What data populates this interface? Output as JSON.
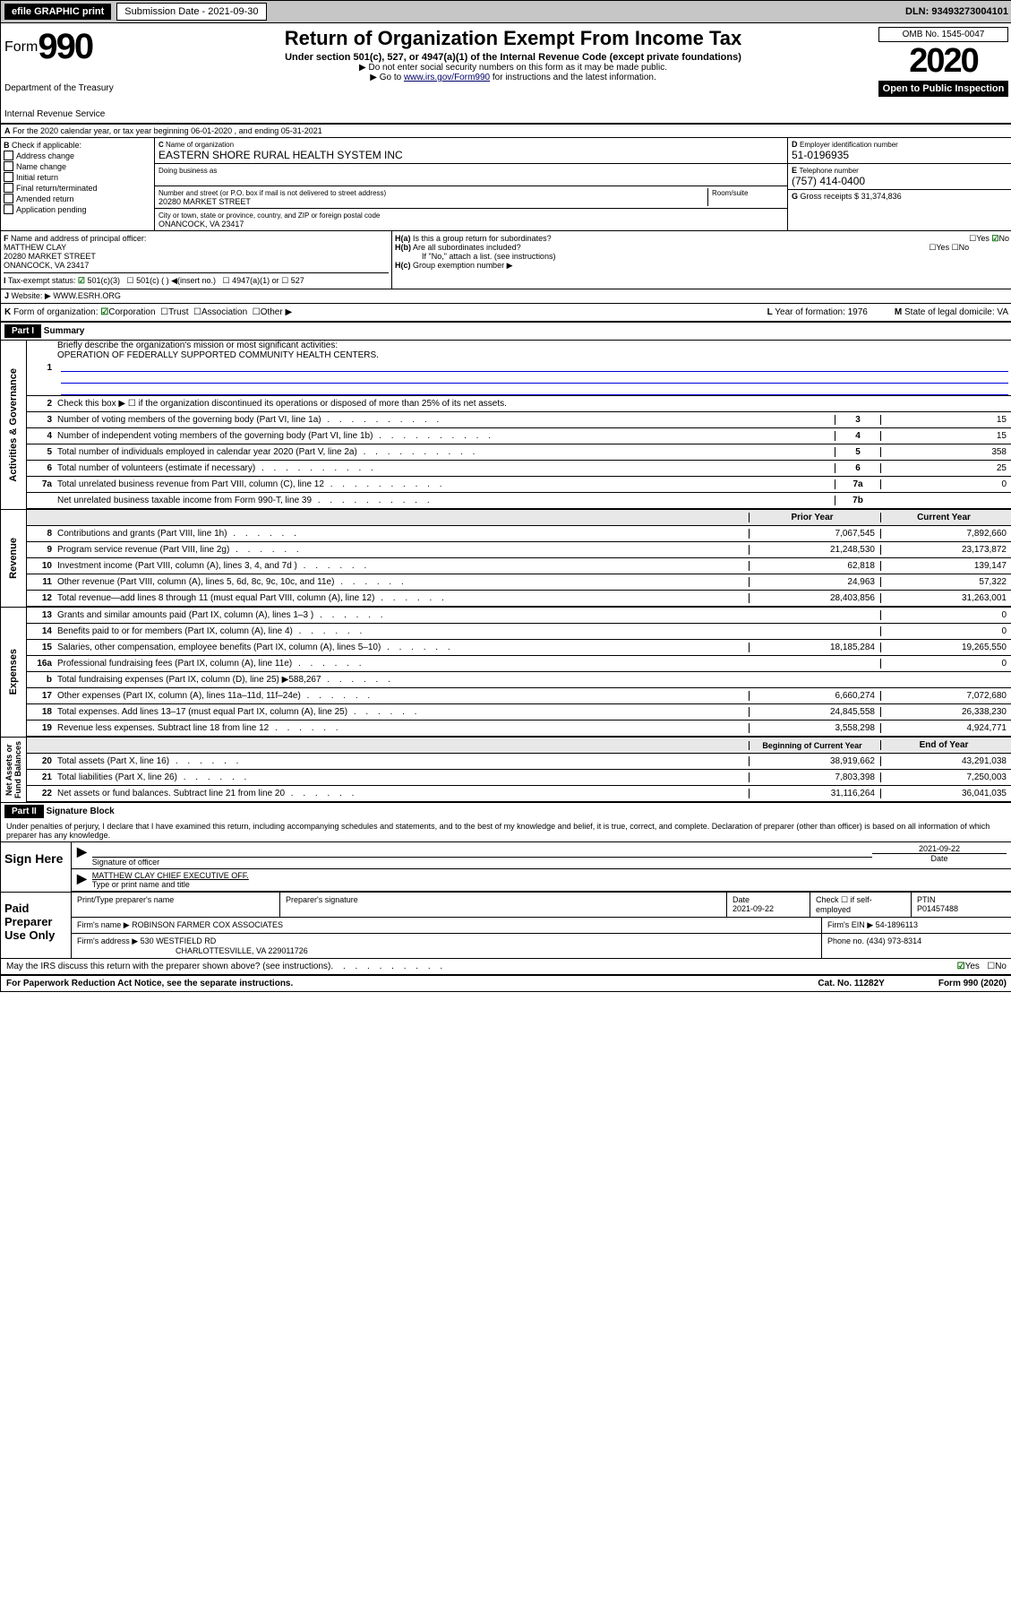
{
  "topbar": {
    "efile": "efile GRAPHIC print",
    "sub_label": "Submission Date - 2021-09-30",
    "dln": "DLN: 93493273004101"
  },
  "hdr": {
    "title": "Return of Organization Exempt From Income Tax",
    "line1": "Under section 501(c), 527, or 4947(a)(1) of the Internal Revenue Code (except private foundations)",
    "line2": "▶ Do not enter social security numbers on this form as it may be made public.",
    "line3_pre": "▶ Go to ",
    "line3_link": "www.irs.gov/Form990",
    "line3_post": " for instructions and the latest information.",
    "form": "990",
    "form_word": "Form",
    "omb": "OMB No. 1545-0047",
    "year": "2020",
    "open": "Open to Public Inspection",
    "agency1": "Department of the Treasury",
    "agency2": "Internal Revenue Service"
  },
  "a": {
    "line": "For the 2020 calendar year, or tax year beginning 06-01-2020    , and ending 05-31-2021"
  },
  "b": {
    "label": "Check if applicable:",
    "opts": [
      "Address change",
      "Name change",
      "Initial return",
      "Final return/terminated",
      "Amended return",
      "Application pending"
    ]
  },
  "c": {
    "name_label": "Name of organization",
    "name": "EASTERN SHORE RURAL HEALTH SYSTEM INC",
    "dba_label": "Doing business as",
    "addr_label": "Number and street (or P.O. box if mail is not delivered to street address)",
    "room_label": "Room/suite",
    "addr": "20280 MARKET STREET",
    "city_label": "City or town, state or province, country, and ZIP or foreign postal code",
    "city": "ONANCOCK, VA  23417"
  },
  "d": {
    "label": "Employer identification number",
    "val": "51-0196935"
  },
  "e": {
    "label": "Telephone number",
    "val": "(757) 414-0400"
  },
  "g": {
    "label": "Gross receipts $",
    "val": "31,374,836"
  },
  "f": {
    "label": "Name and address of principal officer:",
    "name": "MATTHEW CLAY",
    "addr": "20280 MARKET STREET",
    "city": "ONANCOCK, VA  23417"
  },
  "h": {
    "a": "Is this a group return for subordinates?",
    "b": "Are all subordinates included?",
    "b2": "If \"No,\" attach a list. (see instructions)",
    "c": "Group exemption number ▶"
  },
  "i": {
    "label": "Tax-exempt status:",
    "o1": "501(c)(3)",
    "o2": "501(c) (  ) ◀(insert no.)",
    "o3": "4947(a)(1) or",
    "o4": "527"
  },
  "j": {
    "label": "Website: ▶",
    "val": "WWW.ESRH.ORG"
  },
  "k": {
    "label": "Form of organization:",
    "o": [
      "Corporation",
      "Trust",
      "Association",
      "Other ▶"
    ],
    "l": "Year of formation: 1976",
    "m": "State of legal domicile: VA"
  },
  "p1": {
    "title": "Part I",
    "sub": "Summary",
    "q1": "Briefly describe the organization's mission or most significant activities:",
    "q1v": "OPERATION OF FEDERALLY SUPPORTED COMMUNITY HEALTH CENTERS.",
    "q2": "Check this box ▶ ☐  if the organization discontinued its operations or disposed of more than 25% of its net assets.",
    "rows_gov": [
      {
        "n": "3",
        "d": "Number of voting members of the governing body (Part VI, line 1a)",
        "c": "3",
        "v": "15"
      },
      {
        "n": "4",
        "d": "Number of independent voting members of the governing body (Part VI, line 1b)",
        "c": "4",
        "v": "15"
      },
      {
        "n": "5",
        "d": "Total number of individuals employed in calendar year 2020 (Part V, line 2a)",
        "c": "5",
        "v": "358"
      },
      {
        "n": "6",
        "d": "Total number of volunteers (estimate if necessary)",
        "c": "6",
        "v": "25"
      },
      {
        "n": "7a",
        "d": "Total unrelated business revenue from Part VIII, column (C), line 12",
        "c": "7a",
        "v": "0"
      },
      {
        "n": "",
        "d": "Net unrelated business taxable income from Form 990-T, line 39",
        "c": "7b",
        "v": ""
      }
    ],
    "hdr_rev": {
      "py": "Prior Year",
      "cy": "Current Year"
    },
    "rows_rev": [
      {
        "n": "8",
        "d": "Contributions and grants (Part VIII, line 1h)",
        "py": "7,067,545",
        "cy": "7,892,660"
      },
      {
        "n": "9",
        "d": "Program service revenue (Part VIII, line 2g)",
        "py": "21,248,530",
        "cy": "23,173,872"
      },
      {
        "n": "10",
        "d": "Investment income (Part VIII, column (A), lines 3, 4, and 7d )",
        "py": "62,818",
        "cy": "139,147"
      },
      {
        "n": "11",
        "d": "Other revenue (Part VIII, column (A), lines 5, 6d, 8c, 9c, 10c, and 11e)",
        "py": "24,963",
        "cy": "57,322"
      },
      {
        "n": "12",
        "d": "Total revenue—add lines 8 through 11 (must equal Part VIII, column (A), line 12)",
        "py": "28,403,856",
        "cy": "31,263,001"
      }
    ],
    "rows_exp": [
      {
        "n": "13",
        "d": "Grants and similar amounts paid (Part IX, column (A), lines 1–3 )",
        "py": "",
        "cy": "0"
      },
      {
        "n": "14",
        "d": "Benefits paid to or for members (Part IX, column (A), line 4)",
        "py": "",
        "cy": "0"
      },
      {
        "n": "15",
        "d": "Salaries, other compensation, employee benefits (Part IX, column (A), lines 5–10)",
        "py": "18,185,284",
        "cy": "19,265,550"
      },
      {
        "n": "16a",
        "d": "Professional fundraising fees (Part IX, column (A), line 11e)",
        "py": "",
        "cy": "0"
      },
      {
        "n": "b",
        "d": "Total fundraising expenses (Part IX, column (D), line 25) ▶588,267",
        "py": "gray",
        "cy": "gray"
      },
      {
        "n": "17",
        "d": "Other expenses (Part IX, column (A), lines 11a–11d, 11f–24e)",
        "py": "6,660,274",
        "cy": "7,072,680"
      },
      {
        "n": "18",
        "d": "Total expenses. Add lines 13–17 (must equal Part IX, column (A), line 25)",
        "py": "24,845,558",
        "cy": "26,338,230"
      },
      {
        "n": "19",
        "d": "Revenue less expenses. Subtract line 18 from line 12",
        "py": "3,558,298",
        "cy": "4,924,771"
      }
    ],
    "hdr_net": {
      "py": "Beginning of Current Year",
      "cy": "End of Year"
    },
    "rows_net": [
      {
        "n": "20",
        "d": "Total assets (Part X, line 16)",
        "py": "38,919,662",
        "cy": "43,291,038"
      },
      {
        "n": "21",
        "d": "Total liabilities (Part X, line 26)",
        "py": "7,803,398",
        "cy": "7,250,003"
      },
      {
        "n": "22",
        "d": "Net assets or fund balances. Subtract line 21 from line 20",
        "py": "31,116,264",
        "cy": "36,041,035"
      }
    ],
    "side": {
      "gov": "Activities & Governance",
      "rev": "Revenue",
      "exp": "Expenses",
      "net": "Net Assets or Fund Balances"
    }
  },
  "p2": {
    "title": "Part II",
    "sub": "Signature Block",
    "decl": "Under penalties of perjury, I declare that I have examined this return, including accompanying schedules and statements, and to the best of my knowledge and belief, it is true, correct, and complete. Declaration of preparer (other than officer) is based on all information of which preparer has any knowledge.",
    "sign_here": "Sign Here",
    "sig_officer": "Signature of officer",
    "date": "2021-09-22",
    "date_label": "Date",
    "name": "MATTHEW CLAY  CHIEF EXECUTIVE OFF.",
    "name_label": "Type or print name and title",
    "paid": "Paid Preparer Use Only",
    "prep_hdr": [
      "Print/Type preparer's name",
      "Preparer's signature",
      "Date",
      "Check ☐ if self-employed",
      "PTIN"
    ],
    "prep_r1": [
      "",
      "",
      "2021-09-22",
      "",
      "P01457488"
    ],
    "firm_name_l": "Firm's name    ▶",
    "firm_name": "ROBINSON FARMER COX ASSOCIATES",
    "firm_ein_l": "Firm's EIN ▶",
    "firm_ein": "54-1896113",
    "firm_addr_l": "Firm's address ▶",
    "firm_addr": "530 WESTFIELD RD",
    "firm_city": "CHARLOTTESVILLE, VA  229011726",
    "phone_l": "Phone no.",
    "phone": "(434) 973-8314",
    "discuss": "May the IRS discuss this return with the preparer shown above? (see instructions)"
  },
  "foot": {
    "l": "For Paperwork Reduction Act Notice, see the separate instructions.",
    "m": "Cat. No. 11282Y",
    "r": "Form 990 (2020)"
  }
}
